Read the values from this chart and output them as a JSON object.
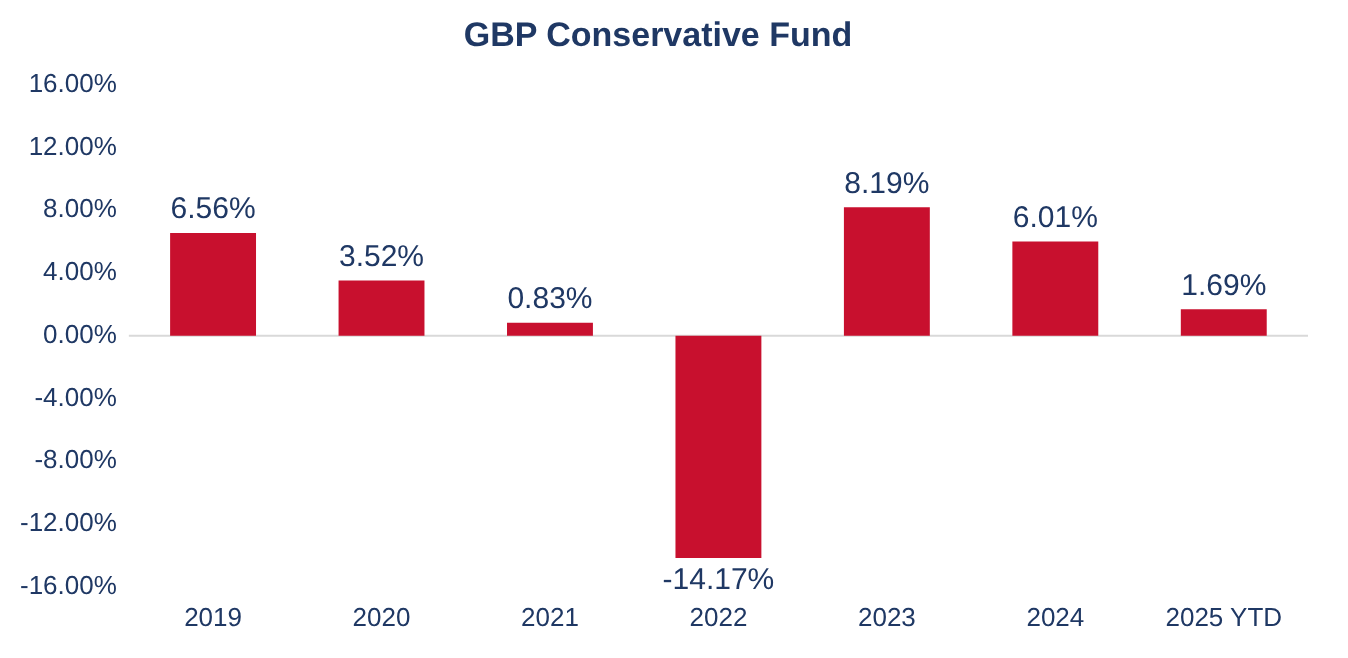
{
  "chart_data": {
    "type": "bar",
    "title": "GBP Conservative Fund",
    "categories": [
      "2019",
      "2020",
      "2021",
      "2022",
      "2023",
      "2024",
      "2025 YTD"
    ],
    "values": [
      6.56,
      3.52,
      0.83,
      -14.17,
      8.19,
      6.01,
      1.69
    ],
    "value_labels": [
      "6.56%",
      "3.52%",
      "0.83%",
      "-14.17%",
      "8.19%",
      "6.01%",
      "1.69%"
    ],
    "color": "#c8102e",
    "ylim": [
      -16,
      16
    ],
    "yticks": [
      {
        "value": -16,
        "label": "-16.00%"
      },
      {
        "value": -12,
        "label": "-12.00%"
      },
      {
        "value": -8,
        "label": "-8.00%"
      },
      {
        "value": -4,
        "label": "-4.00%"
      },
      {
        "value": 0,
        "label": "0.00%"
      },
      {
        "value": 4,
        "label": "4.00%"
      },
      {
        "value": 8,
        "label": "8.00%"
      },
      {
        "value": 12,
        "label": "12.00%"
      },
      {
        "value": 16,
        "label": "16.00%"
      }
    ],
    "ref_lines": [
      {
        "axis": "y",
        "value": 0,
        "color": "#d9d9d9"
      }
    ],
    "grid": false,
    "legend": false
  }
}
